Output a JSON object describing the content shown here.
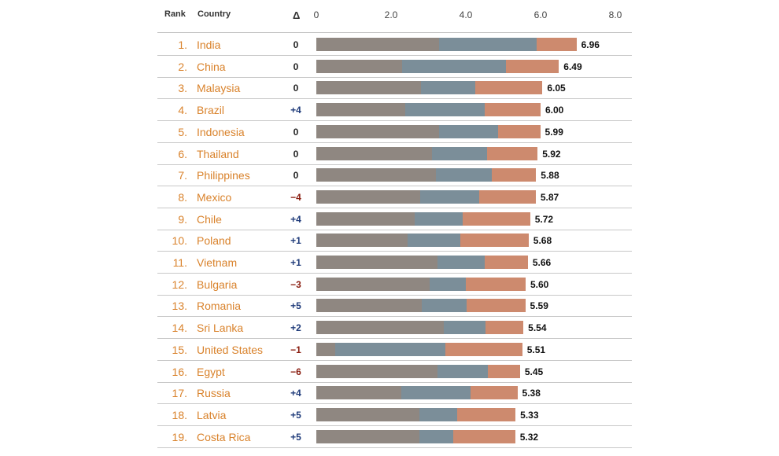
{
  "header": {
    "rank": "Rank",
    "country": "Country",
    "delta": "Δ"
  },
  "colors": {
    "seg1": "#8f8781",
    "seg2": "#7b8e99",
    "seg3": "#cd8a6e",
    "country": "#d9822b",
    "pos": "#1f3b7a",
    "neg": "#8a1d10",
    "zero": "#222222"
  },
  "chart_data": {
    "type": "bar",
    "orientation": "horizontal",
    "stacked": true,
    "xlim": [
      0,
      8
    ],
    "xticks": [
      "0",
      "2.0",
      "4.0",
      "6.0",
      "8.0"
    ],
    "rows": [
      {
        "rank": "1.",
        "country": "India",
        "delta": "0",
        "total": "6.96",
        "segments": [
          3.28,
          2.62,
          1.06
        ]
      },
      {
        "rank": "2.",
        "country": "China",
        "delta": "0",
        "total": "6.49",
        "segments": [
          2.3,
          2.77,
          1.42
        ]
      },
      {
        "rank": "3.",
        "country": "Malaysia",
        "delta": "0",
        "total": "6.05",
        "segments": [
          2.8,
          1.45,
          1.8
        ]
      },
      {
        "rank": "4.",
        "country": "Brazil",
        "delta": "+4",
        "total": "6.00",
        "segments": [
          2.38,
          2.13,
          1.49
        ]
      },
      {
        "rank": "5.",
        "country": "Indonesia",
        "delta": "0",
        "total": "5.99",
        "segments": [
          3.28,
          1.59,
          1.12
        ]
      },
      {
        "rank": "6.",
        "country": "Thailand",
        "delta": "0",
        "total": "5.92",
        "segments": [
          3.1,
          1.47,
          1.35
        ]
      },
      {
        "rank": "7.",
        "country": "Philippines",
        "delta": "0",
        "total": "5.88",
        "segments": [
          3.2,
          1.5,
          1.18
        ]
      },
      {
        "rank": "8.",
        "country": "Mexico",
        "delta": "−4",
        "total": "5.87",
        "segments": [
          2.78,
          1.57,
          1.52
        ]
      },
      {
        "rank": "9.",
        "country": "Chile",
        "delta": "+4",
        "total": "5.72",
        "segments": [
          2.63,
          1.29,
          1.8
        ]
      },
      {
        "rank": "10.",
        "country": "Poland",
        "delta": "+1",
        "total": "5.68",
        "segments": [
          2.45,
          1.4,
          1.83
        ]
      },
      {
        "rank": "11.",
        "country": "Vietnam",
        "delta": "+1",
        "total": "5.66",
        "segments": [
          3.24,
          1.27,
          1.15
        ]
      },
      {
        "rank": "12.",
        "country": "Bulgaria",
        "delta": "−3",
        "total": "5.60",
        "segments": [
          3.04,
          0.97,
          1.59
        ]
      },
      {
        "rank": "13.",
        "country": "Romania",
        "delta": "+5",
        "total": "5.59",
        "segments": [
          2.83,
          1.2,
          1.56
        ]
      },
      {
        "rank": "14.",
        "country": "Sri Lanka",
        "delta": "+2",
        "total": "5.54",
        "segments": [
          3.42,
          1.1,
          1.02
        ]
      },
      {
        "rank": "15.",
        "country": "United States",
        "delta": "−1",
        "total": "5.51",
        "segments": [
          0.5,
          2.96,
          2.05
        ]
      },
      {
        "rank": "16.",
        "country": "Egypt",
        "delta": "−6",
        "total": "5.45",
        "segments": [
          3.24,
          1.34,
          0.87
        ]
      },
      {
        "rank": "17.",
        "country": "Russia",
        "delta": "+4",
        "total": "5.38",
        "segments": [
          2.28,
          1.84,
          1.26
        ]
      },
      {
        "rank": "18.",
        "country": "Latvia",
        "delta": "+5",
        "total": "5.33",
        "segments": [
          2.75,
          1.02,
          1.56
        ]
      },
      {
        "rank": "19.",
        "country": "Costa Rica",
        "delta": "+5",
        "total": "5.32",
        "segments": [
          2.75,
          0.92,
          1.65
        ]
      }
    ]
  }
}
